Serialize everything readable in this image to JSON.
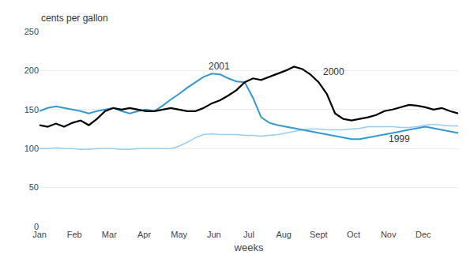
{
  "chart_data": {
    "type": "line",
    "xlabel": "weeks",
    "ylabel": "cents per gallon",
    "x": [
      1,
      2,
      3,
      4,
      5,
      6,
      7,
      8,
      9,
      10,
      11,
      12,
      13,
      14,
      15,
      16,
      17,
      18,
      19,
      20,
      21,
      22,
      23,
      24,
      25,
      26,
      27,
      28,
      29,
      30,
      31,
      32,
      33,
      34,
      35,
      36,
      37,
      38,
      39,
      40,
      41,
      42,
      43,
      44,
      45,
      46,
      47,
      48,
      49,
      50,
      51,
      52
    ],
    "xlim": [
      1,
      52
    ],
    "xticks": [
      {
        "value": 1,
        "label": "Jan"
      },
      {
        "value": 5.25,
        "label": "Feb"
      },
      {
        "value": 9.5,
        "label": "Mar"
      },
      {
        "value": 13.75,
        "label": "Apr"
      },
      {
        "value": 18,
        "label": "May"
      },
      {
        "value": 22.25,
        "label": "Jun"
      },
      {
        "value": 26.5,
        "label": "Jul"
      },
      {
        "value": 30.75,
        "label": "Aug"
      },
      {
        "value": 35,
        "label": "Sept"
      },
      {
        "value": 39.25,
        "label": "Oct"
      },
      {
        "value": 43.5,
        "label": "Nov"
      },
      {
        "value": 47.75,
        "label": "Dec"
      }
    ],
    "ylim": [
      0,
      250
    ],
    "yticks": [
      0,
      50,
      100,
      150,
      200,
      250
    ],
    "grid": true,
    "series": [
      {
        "name": "1999",
        "color": "#99ccee",
        "values": [
          100,
          100,
          101,
          100,
          100,
          99,
          99,
          100,
          100,
          100,
          99,
          99,
          100,
          100,
          100,
          100,
          100,
          103,
          108,
          114,
          118,
          119,
          118,
          118,
          118,
          117,
          117,
          116,
          117,
          118,
          120,
          122,
          124,
          125,
          125,
          124,
          124,
          124,
          125,
          126,
          128,
          128,
          128,
          128,
          127,
          127,
          128,
          130,
          131,
          130,
          129,
          129
        ]
      },
      {
        "name": "2000",
        "color": "#000000",
        "values": [
          130,
          128,
          132,
          128,
          133,
          136,
          130,
          138,
          148,
          152,
          150,
          152,
          150,
          148,
          148,
          150,
          152,
          150,
          148,
          148,
          152,
          158,
          162,
          168,
          175,
          185,
          190,
          188,
          192,
          196,
          200,
          205,
          202,
          195,
          185,
          170,
          145,
          138,
          136,
          138,
          140,
          143,
          148,
          150,
          153,
          156,
          155,
          153,
          150,
          152,
          148,
          145
        ]
      },
      {
        "name": "2001",
        "color": "#3399cc",
        "values": [
          148,
          152,
          154,
          152,
          150,
          148,
          145,
          148,
          150,
          152,
          148,
          145,
          148,
          150,
          148,
          155,
          163,
          170,
          178,
          185,
          192,
          196,
          195,
          190,
          186,
          185,
          165,
          140,
          133,
          130,
          128,
          126,
          124,
          122,
          120,
          118,
          116,
          114,
          112,
          112,
          114,
          116,
          118,
          120,
          122,
          124,
          126,
          128,
          126,
          124,
          122,
          120
        ]
      }
    ]
  }
}
